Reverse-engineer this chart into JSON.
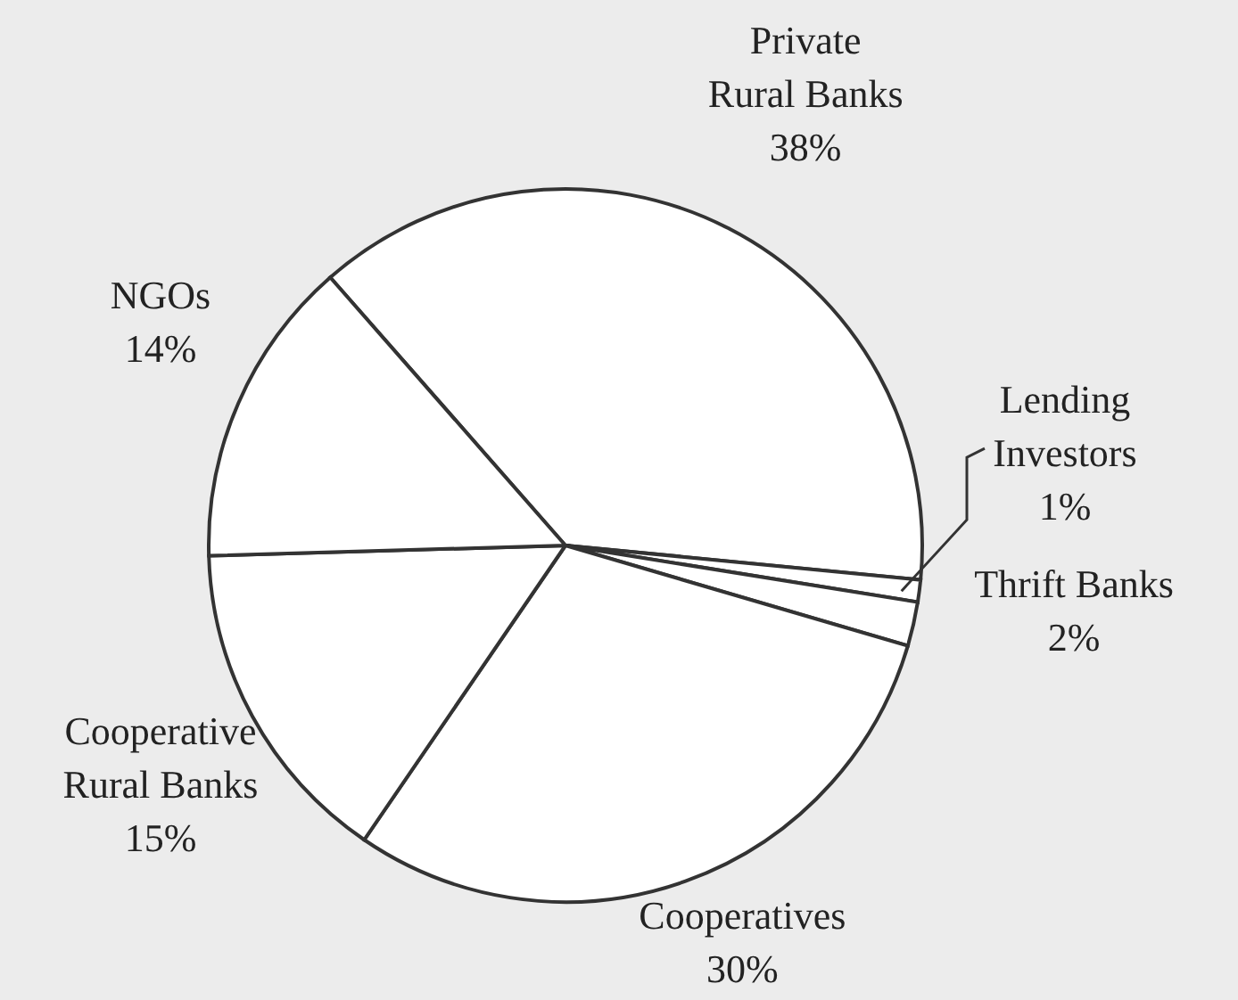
{
  "chart_data": {
    "type": "pie",
    "categories": [
      "Private Rural Banks",
      "Lending Investors",
      "Thrift Banks",
      "Cooperatives",
      "Cooperative Rural Banks",
      "NGOs"
    ],
    "values": [
      38,
      1,
      2,
      30,
      15,
      14
    ],
    "value_labels": [
      "38%",
      "1%",
      "2%",
      "30%",
      "15%",
      "14%"
    ],
    "colors": [
      "#ffffff",
      "#ffffff",
      "#ffffff",
      "#ffffff",
      "#ffffff",
      "#ffffff"
    ]
  }
}
